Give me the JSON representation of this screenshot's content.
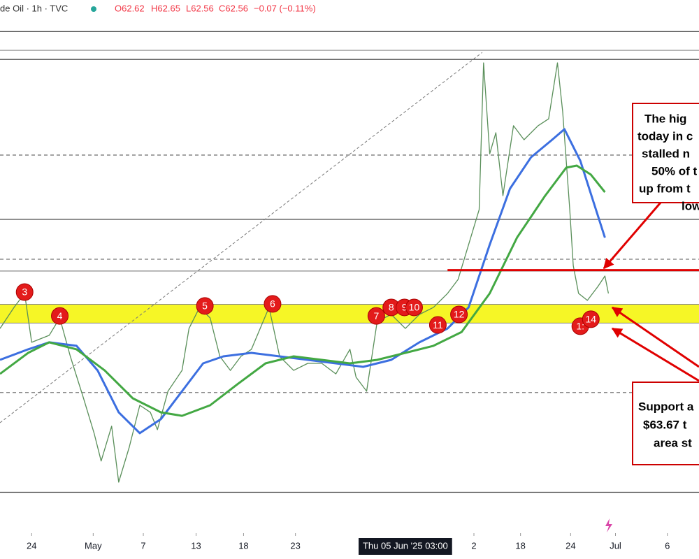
{
  "header": {
    "symbol": "de Oil · 1h · TVC",
    "open": "O62.62",
    "high": "H62.65",
    "low": "L62.56",
    "close": "C62.56",
    "change": "−0.07 (−0.11%)"
  },
  "chart_data": {
    "type": "line",
    "xlim": [
      110.5,
      190
    ],
    "ylim": [
      52.5,
      80.5
    ],
    "xticks": [
      {
        "value": 114.1,
        "label": "24"
      },
      {
        "value": 121.1,
        "label": "May"
      },
      {
        "value": 126.8,
        "label": "7"
      },
      {
        "value": 132.8,
        "label": "13"
      },
      {
        "value": 138.2,
        "label": "18"
      },
      {
        "value": 144.1,
        "label": "23"
      },
      {
        "value": 164.4,
        "label": "2"
      },
      {
        "value": 169.7,
        "label": "18"
      },
      {
        "value": 175.4,
        "label": "24"
      },
      {
        "value": 180.5,
        "label": "Jul"
      },
      {
        "value": 186.4,
        "label": "6"
      }
    ],
    "crosshair": {
      "value": 156.6,
      "label": "Thu 05 Jun '25  03:00"
    },
    "series": [
      {
        "color": "#5a8f5a",
        "width": 1.3,
        "x": [
          110.5,
          112.1,
          113.3,
          114.1,
          116.1,
          117.3,
          118.5,
          120.0,
          121.2,
          122.0,
          123.2,
          124.0,
          125.2,
          126.4,
          127.6,
          128.4,
          129.6,
          131.2,
          132.0,
          133.2,
          134.4,
          135.5,
          136.7,
          137.9,
          139.1,
          141.1,
          142.3,
          143.9,
          145.5,
          147.1,
          148.7,
          150.3,
          151.0,
          152.2,
          153.4,
          155.0,
          156.6,
          158.2,
          159.8,
          161.4,
          162.6,
          163.8,
          165.0,
          165.5,
          166.2,
          166.9,
          167.7,
          168.9,
          170.1,
          171.7,
          172.9,
          173.9,
          174.5,
          175.3,
          175.7,
          176.3,
          177.3,
          178.5,
          179.3,
          179.7
        ],
        "values": [
          63.47,
          64.61,
          65.37,
          62.72,
          63.1,
          64.04,
          61.96,
          59.69,
          57.8,
          56.29,
          58.18,
          55.15,
          57.04,
          59.31,
          58.93,
          57.99,
          60.07,
          61.2,
          63.47,
          64.61,
          64.04,
          61.96,
          61.2,
          61.96,
          62.34,
          64.61,
          61.96,
          61.2,
          61.58,
          61.58,
          61.01,
          62.34,
          60.83,
          60.07,
          63.85,
          64.23,
          63.47,
          64.23,
          64.61,
          65.37,
          66.12,
          68.01,
          69.91,
          77.85,
          72.93,
          74.07,
          70.66,
          74.45,
          73.69,
          74.45,
          74.82,
          77.85,
          75.2,
          69.91,
          66.88,
          65.37,
          64.99,
          65.74,
          66.31,
          65.37
        ]
      },
      {
        "color": "#3c6fe0",
        "width": 3,
        "x": [
          110.5,
          113.7,
          116.1,
          119.2,
          121.6,
          124.0,
          126.4,
          128.8,
          131.2,
          133.6,
          135.9,
          139.1,
          142.3,
          145.5,
          148.7,
          151.8,
          155.0,
          158.2,
          161.4,
          163.8,
          166.2,
          168.5,
          170.9,
          173.3,
          174.7,
          176.5,
          179.3
        ],
        "values": [
          61.77,
          62.34,
          62.72,
          62.53,
          61.2,
          58.93,
          57.8,
          58.56,
          60.07,
          61.58,
          61.96,
          62.15,
          61.96,
          61.77,
          61.58,
          61.39,
          61.77,
          62.72,
          63.47,
          64.61,
          68.01,
          71.04,
          72.74,
          73.69,
          74.26,
          72.55,
          68.39
        ]
      },
      {
        "color": "#43a843",
        "width": 3,
        "x": [
          110.5,
          113.7,
          116.1,
          119.2,
          122.4,
          125.6,
          128.8,
          131.2,
          134.4,
          137.5,
          140.7,
          143.9,
          147.1,
          150.3,
          153.4,
          156.6,
          159.8,
          163.0,
          166.2,
          169.3,
          172.5,
          174.9,
          176.1,
          177.7,
          179.3
        ],
        "values": [
          61.01,
          62.15,
          62.72,
          62.34,
          61.2,
          59.69,
          58.93,
          58.74,
          59.31,
          60.45,
          61.58,
          61.96,
          61.77,
          61.58,
          61.77,
          62.15,
          62.53,
          63.28,
          65.37,
          68.39,
          70.66,
          72.18,
          72.29,
          71.8,
          70.85
        ]
      }
    ],
    "levels": [
      {
        "value": 79.55,
        "color": "#222",
        "dashed": false
      },
      {
        "value": 78.53,
        "color": "#999",
        "dashed": false
      },
      {
        "value": 78.04,
        "color": "#222",
        "dashed": false
      },
      {
        "value": 72.86,
        "color": "#777",
        "dashed": true
      },
      {
        "value": 69.38,
        "color": "#444",
        "dashed": false
      },
      {
        "value": 67.22,
        "color": "#777",
        "dashed": true
      },
      {
        "value": 66.58,
        "color": "#888",
        "dashed": false
      },
      {
        "value": 60.0,
        "color": "#777",
        "dashed": true
      },
      {
        "value": 54.6,
        "color": "#444",
        "dashed": false
      }
    ],
    "support_band": {
      "low": 63.76,
      "high": 64.78,
      "color": "#f5f500"
    },
    "resistance_line": {
      "value": 66.63,
      "from": 161.4,
      "color": "#e00000"
    },
    "markers": [
      {
        "label": "3",
        "x": 113.3,
        "y": 65.44
      },
      {
        "label": "4",
        "x": 117.3,
        "y": 64.15
      },
      {
        "label": "5",
        "x": 133.8,
        "y": 64.69
      },
      {
        "label": "6",
        "x": 141.5,
        "y": 64.8
      },
      {
        "label": "7",
        "x": 153.3,
        "y": 64.15
      },
      {
        "label": "8",
        "x": 155.0,
        "y": 64.61
      },
      {
        "label": "9",
        "x": 156.5,
        "y": 64.61
      },
      {
        "label": "10",
        "x": 157.6,
        "y": 64.61
      },
      {
        "label": "11",
        "x": 160.3,
        "y": 63.66
      },
      {
        "label": "12",
        "x": 162.7,
        "y": 64.23
      },
      {
        "label": "1:",
        "x": 176.5,
        "y": 63.59
      },
      {
        "label": "14",
        "x": 177.7,
        "y": 63.97
      }
    ],
    "annotations": [
      {
        "lines": [
          "The hig",
          "today in c",
          "stalled n",
          "50% of t",
          "up from t",
          "low"
        ]
      },
      {
        "lines": [
          "Support a",
          "$63.67 t",
          "area st"
        ]
      }
    ]
  }
}
